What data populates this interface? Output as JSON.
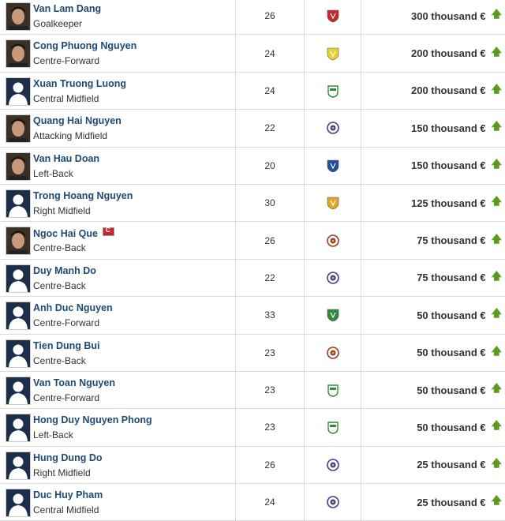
{
  "players": [
    {
      "name": "Van Lam Dang",
      "position": "Goalkeeper",
      "age": "26",
      "club_color": "#c8262c",
      "club_shape": "shield",
      "value": "300 thousand €",
      "photo": true,
      "trend": "up"
    },
    {
      "name": "Cong Phuong Nguyen",
      "position": "Centre-Forward",
      "age": "24",
      "club_color": "#e8d42a",
      "club_shape": "shield",
      "value": "200 thousand €",
      "photo": true,
      "trend": "up"
    },
    {
      "name": "Xuan Truong Luong",
      "position": "Central Midfield",
      "age": "24",
      "club_color": "#2f8a3e",
      "club_shape": "round",
      "value": "200 thousand €",
      "photo": false,
      "trend": "up"
    },
    {
      "name": "Quang Hai Nguyen",
      "position": "Attacking Midfield",
      "age": "22",
      "club_color": "#3b3f8f",
      "club_shape": "circle",
      "value": "150 thousand €",
      "photo": true,
      "trend": "up"
    },
    {
      "name": "Van Hau Doan",
      "position": "Left-Back",
      "age": "20",
      "club_color": "#1f4fa0",
      "club_shape": "shield",
      "value": "150 thousand €",
      "photo": true,
      "trend": "up"
    },
    {
      "name": "Trong Hoang Nguyen",
      "position": "Right Midfield",
      "age": "30",
      "club_color": "#e0a820",
      "club_shape": "shield",
      "value": "125 thousand €",
      "photo": false,
      "trend": "up"
    },
    {
      "name": "Ngoc Hai Que",
      "position": "Centre-Back",
      "age": "26",
      "club_color": "#9a3a20",
      "club_shape": "circle",
      "value": "75 thousand €",
      "photo": true,
      "captain": true,
      "trend": "up"
    },
    {
      "name": "Duy Manh Do",
      "position": "Centre-Back",
      "age": "22",
      "club_color": "#3b3f8f",
      "club_shape": "circle",
      "value": "75 thousand €",
      "photo": false,
      "trend": "up"
    },
    {
      "name": "Anh Duc Nguyen",
      "position": "Centre-Forward",
      "age": "33",
      "club_color": "#2f8a3e",
      "club_shape": "shield",
      "value": "50 thousand €",
      "photo": false,
      "trend": "up"
    },
    {
      "name": "Tien Dung Bui",
      "position": "Centre-Back",
      "age": "23",
      "club_color": "#9a3a20",
      "club_shape": "circle",
      "value": "50 thousand €",
      "photo": false,
      "trend": "up"
    },
    {
      "name": "Van Toan Nguyen",
      "position": "Centre-Forward",
      "age": "23",
      "club_color": "#2f8a3e",
      "club_shape": "round",
      "value": "50 thousand €",
      "photo": false,
      "trend": "up"
    },
    {
      "name": "Hong Duy Nguyen Phong",
      "position": "Left-Back",
      "age": "23",
      "club_color": "#2f8a3e",
      "club_shape": "round",
      "value": "50 thousand €",
      "photo": false,
      "trend": "up"
    },
    {
      "name": "Hung Dung Do",
      "position": "Right Midfield",
      "age": "26",
      "club_color": "#3b3f8f",
      "club_shape": "circle",
      "value": "25 thousand €",
      "photo": false,
      "trend": "up"
    },
    {
      "name": "Duc Huy Pham",
      "position": "Central Midfield",
      "age": "24",
      "club_color": "#3b3f8f",
      "club_shape": "circle",
      "value": "25 thousand €",
      "photo": false,
      "trend": "up"
    }
  ],
  "colors": {
    "name": "#1d4a73",
    "trend_up": "#5a9a1c"
  }
}
